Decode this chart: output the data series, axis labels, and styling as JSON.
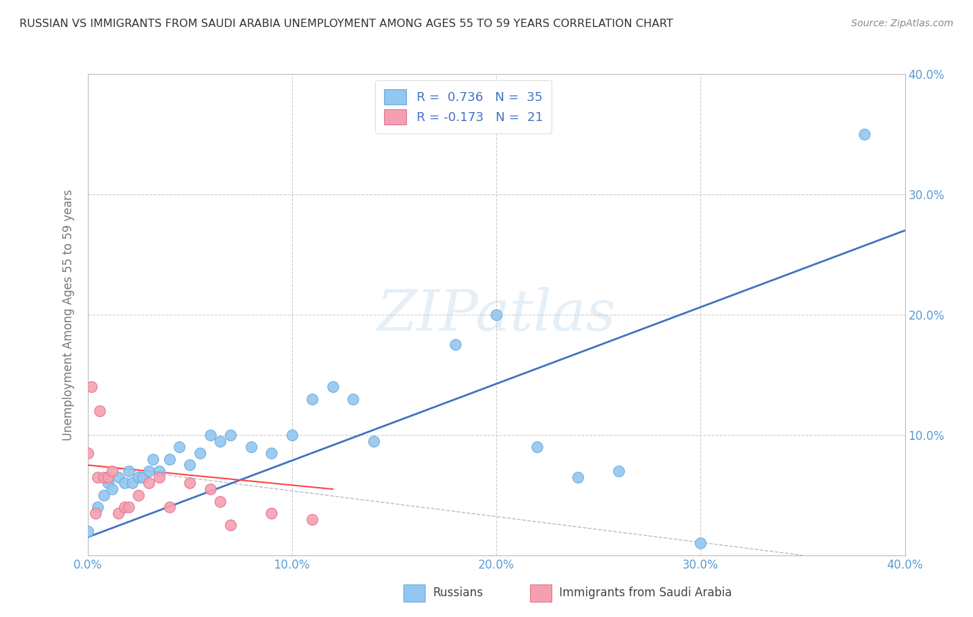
{
  "title": "RUSSIAN VS IMMIGRANTS FROM SAUDI ARABIA UNEMPLOYMENT AMONG AGES 55 TO 59 YEARS CORRELATION CHART",
  "source": "Source: ZipAtlas.com",
  "ylabel": "Unemployment Among Ages 55 to 59 years",
  "xlabel": "",
  "xlim": [
    0.0,
    0.4
  ],
  "ylim": [
    0.0,
    0.4
  ],
  "xticks": [
    0.0,
    0.1,
    0.2,
    0.3,
    0.4
  ],
  "yticks": [
    0.1,
    0.2,
    0.3,
    0.4
  ],
  "xticklabels": [
    "0.0%",
    "10.0%",
    "20.0%",
    "30.0%",
    "40.0%"
  ],
  "yticklabels_right": [
    "10.0%",
    "20.0%",
    "30.0%",
    "40.0%"
  ],
  "russian_color": "#93C6F0",
  "russian_edge": "#6AAAD8",
  "saudi_color": "#F5A0B0",
  "saudi_edge": "#E07090",
  "russian_R": 0.736,
  "russian_N": 35,
  "saudi_R": -0.173,
  "saudi_N": 21,
  "legend_label_russian": "Russians",
  "legend_label_saudi": "Immigrants from Saudi Arabia",
  "watermark": "ZIPatlas",
  "russian_x": [
    0.0,
    0.005,
    0.008,
    0.01,
    0.012,
    0.015,
    0.018,
    0.02,
    0.022,
    0.025,
    0.027,
    0.03,
    0.032,
    0.035,
    0.04,
    0.045,
    0.05,
    0.055,
    0.06,
    0.065,
    0.07,
    0.08,
    0.09,
    0.1,
    0.11,
    0.12,
    0.13,
    0.14,
    0.18,
    0.2,
    0.22,
    0.24,
    0.26,
    0.3,
    0.38
  ],
  "russian_y": [
    0.02,
    0.04,
    0.05,
    0.06,
    0.055,
    0.065,
    0.06,
    0.07,
    0.06,
    0.065,
    0.065,
    0.07,
    0.08,
    0.07,
    0.08,
    0.09,
    0.075,
    0.085,
    0.1,
    0.095,
    0.1,
    0.09,
    0.085,
    0.1,
    0.13,
    0.14,
    0.13,
    0.095,
    0.175,
    0.2,
    0.09,
    0.065,
    0.07,
    0.01,
    0.35
  ],
  "saudi_x": [
    0.0,
    0.002,
    0.004,
    0.005,
    0.006,
    0.008,
    0.01,
    0.012,
    0.015,
    0.018,
    0.02,
    0.025,
    0.03,
    0.035,
    0.04,
    0.05,
    0.06,
    0.065,
    0.07,
    0.09,
    0.11
  ],
  "saudi_y": [
    0.085,
    0.14,
    0.035,
    0.065,
    0.12,
    0.065,
    0.065,
    0.07,
    0.035,
    0.04,
    0.04,
    0.05,
    0.06,
    0.065,
    0.04,
    0.06,
    0.055,
    0.045,
    0.025,
    0.035,
    0.03
  ],
  "blue_line_x": [
    0.0,
    0.4
  ],
  "blue_line_y": [
    0.015,
    0.27
  ],
  "red_line_x": [
    0.0,
    0.12
  ],
  "red_line_y": [
    0.075,
    0.055
  ],
  "gray_line_x": [
    0.0,
    0.35
  ],
  "gray_line_y": [
    0.075,
    0.0
  ],
  "background_color": "#FFFFFF",
  "grid_color": "#CCCCCC",
  "title_color": "#333333",
  "tick_label_color": "#5B9BD5",
  "axis_label_color": "#777777",
  "legend_text_color": "#4472C4",
  "legend_border_color": "#DDDDDD"
}
